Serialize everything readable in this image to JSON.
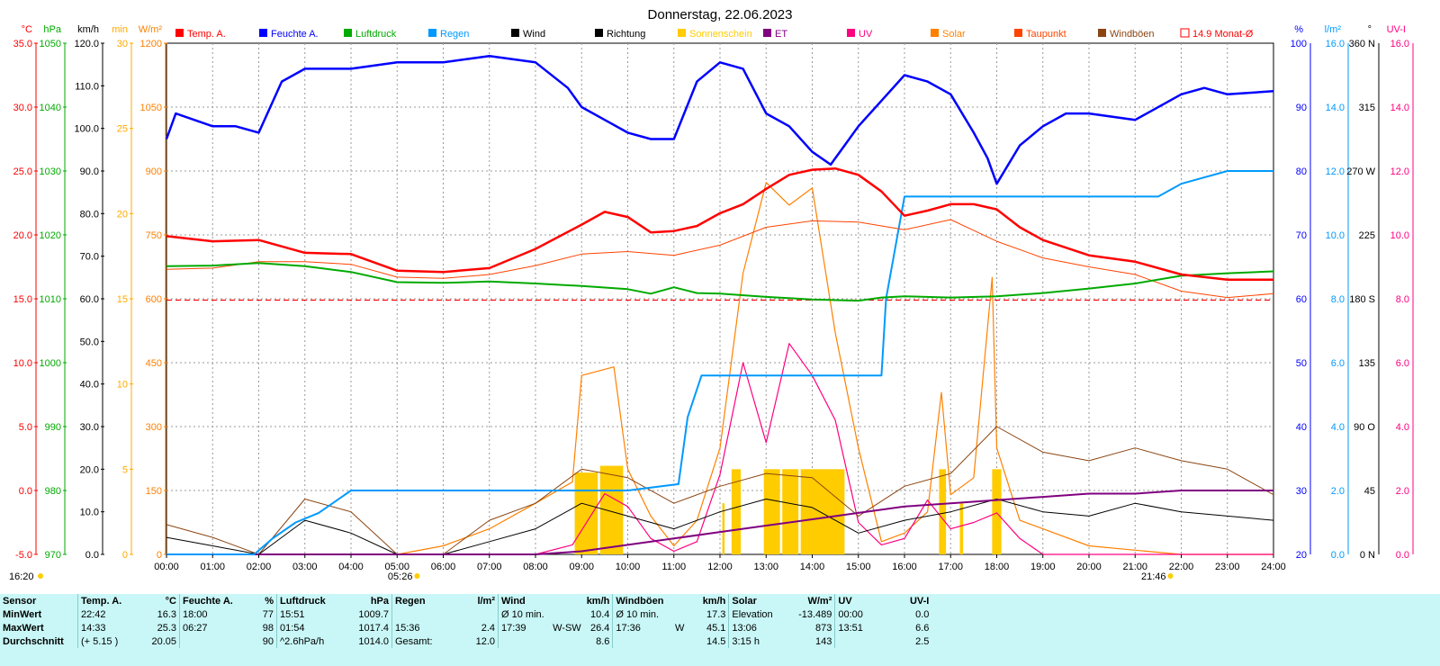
{
  "chart_data": {
    "type": "line",
    "title": "Donnerstag, 22.06.2023",
    "x_ticks": [
      "00:00",
      "01:00",
      "02:00",
      "03:00",
      "04:00",
      "05:00",
      "06:00",
      "07:00",
      "08:00",
      "09:00",
      "10:00",
      "11:00",
      "12:00",
      "13:00",
      "14:00",
      "15:00",
      "16:00",
      "17:00",
      "18:00",
      "19:00",
      "20:00",
      "21:00",
      "22:00",
      "23:00",
      "24:00"
    ],
    "grid": true,
    "legend_position": "top",
    "left_axes": [
      {
        "unit": "°C",
        "color": "#ff0000",
        "ticks": [
          "35.0",
          "30.0",
          "25.0",
          "20.0",
          "15.0",
          "10.0",
          "5.0",
          "0.0",
          "-5.0"
        ]
      },
      {
        "unit": "hPa",
        "color": "#00aa00",
        "ticks": [
          "1050",
          "1040",
          "1030",
          "1020",
          "1010",
          "1000",
          "990",
          "980",
          "970"
        ]
      },
      {
        "unit": "km/h",
        "color": "#000000",
        "ticks": [
          "120.0",
          "110.0",
          "100.0",
          "90.0",
          "80.0",
          "70.0",
          "60.0",
          "50.0",
          "40.0",
          "30.0",
          "20.0",
          "10.0",
          "0.0"
        ]
      },
      {
        "unit": "min",
        "color": "#ffaa00",
        "ticks": [
          "30",
          "25",
          "20",
          "15",
          "10",
          "5",
          "0"
        ]
      },
      {
        "unit": "W/m²",
        "color": "#ff8000",
        "ticks": [
          "1200",
          "1050",
          "900",
          "750",
          "600",
          "450",
          "300",
          "150",
          "0"
        ]
      }
    ],
    "right_axes": [
      {
        "unit": "%",
        "color": "#0000ff",
        "ticks": [
          "100",
          "90",
          "80",
          "70",
          "60",
          "50",
          "40",
          "30",
          "20"
        ]
      },
      {
        "unit": "l/m²",
        "color": "#0099ff",
        "ticks": [
          "16.0",
          "14.0",
          "12.0",
          "10.0",
          "8.0",
          "6.0",
          "4.0",
          "2.0",
          "0.0"
        ]
      },
      {
        "unit": "°",
        "color": "#000000",
        "ticks": [
          "360 N",
          "315",
          "270 W",
          "225",
          "180 S",
          "135",
          "90 O",
          "45",
          "0 N"
        ]
      },
      {
        "unit": "UV-I",
        "color": "#ff0080",
        "ticks": [
          "16.0",
          "14.0",
          "12.0",
          "10.0",
          "8.0",
          "6.0",
          "4.0",
          "2.0",
          "0.0"
        ]
      }
    ],
    "legend": [
      {
        "name": "Temp. A.",
        "color": "#ff0000"
      },
      {
        "name": "Feuchte A.",
        "color": "#0000ff"
      },
      {
        "name": "Luftdruck",
        "color": "#00aa00"
      },
      {
        "name": "Regen",
        "color": "#0099ff"
      },
      {
        "name": "Wind",
        "color": "#000000"
      },
      {
        "name": "Richtung",
        "color": "#000000"
      },
      {
        "name": "Sonnenschein",
        "color": "#ffcc00"
      },
      {
        "name": "ET",
        "color": "#800080"
      },
      {
        "name": "UV",
        "color": "#ff0080"
      },
      {
        "name": "Solar",
        "color": "#ff8000"
      },
      {
        "name": "Taupunkt",
        "color": "#ff4400"
      },
      {
        "name": "Windböen",
        "color": "#8b4513"
      },
      {
        "name": "14.9 Monat-Ø",
        "color": "#ff0000",
        "value": 14.9
      }
    ],
    "sunrise": "05:26",
    "sunset": "21:46",
    "bottom_left_label": "16:20",
    "series": [
      {
        "name": "Temp. A.",
        "axis": "°C",
        "x": [
          0,
          1,
          2,
          3,
          4,
          5,
          6,
          7,
          8,
          9,
          9.5,
          10,
          10.5,
          11,
          11.5,
          12,
          12.5,
          13,
          13.5,
          14,
          14.5,
          15,
          15.5,
          16,
          16.5,
          17,
          17.5,
          18,
          18.5,
          19,
          20,
          21,
          22,
          23,
          24
        ],
        "y": [
          19.9,
          19.5,
          19.6,
          18.6,
          18.5,
          17.2,
          17.1,
          17.4,
          18.9,
          20.8,
          21.8,
          21.4,
          20.2,
          20.3,
          20.7,
          21.7,
          22.4,
          23.6,
          24.7,
          25.1,
          25.2,
          24.7,
          23.4,
          21.5,
          21.9,
          22.4,
          22.4,
          22.0,
          20.6,
          19.6,
          18.4,
          17.9,
          16.9,
          16.5,
          16.5
        ]
      },
      {
        "name": "Feuchte A.",
        "axis": "%",
        "x": [
          0,
          0.2,
          1,
          1.5,
          2,
          2.5,
          3,
          4,
          5,
          6,
          7,
          8,
          8.7,
          9,
          9.5,
          10,
          10.5,
          11,
          11.5,
          12,
          12.5,
          13,
          13.5,
          14,
          14.4,
          14.7,
          15,
          15.5,
          16,
          16.5,
          17,
          17.5,
          17.8,
          18,
          18.5,
          19,
          19.5,
          20,
          21,
          22,
          22.5,
          23,
          24
        ],
        "y": [
          85,
          89,
          87,
          87,
          86,
          94,
          96,
          96,
          97,
          97,
          98,
          97,
          93,
          90,
          88,
          86,
          85,
          85,
          94,
          97,
          96,
          89,
          87,
          83,
          81,
          84,
          87,
          91,
          95,
          94,
          92,
          86,
          82,
          78,
          84,
          87,
          89,
          89,
          88,
          92,
          93,
          92,
          92.5
        ]
      },
      {
        "name": "Luftdruck",
        "axis": "hPa",
        "x": [
          0,
          1,
          2,
          3,
          4,
          5,
          6,
          7,
          8,
          9,
          10,
          10.5,
          11,
          11.5,
          12,
          13,
          14,
          15,
          15.5,
          16,
          17,
          18,
          19,
          20,
          21,
          22,
          23,
          24
        ],
        "y": [
          1015.1,
          1015.2,
          1015.6,
          1015.1,
          1014.2,
          1012.6,
          1012.5,
          1012.7,
          1012.4,
          1012.0,
          1011.5,
          1010.8,
          1011.8,
          1010.9,
          1010.8,
          1010.3,
          1009.9,
          1009.7,
          1010.2,
          1010.4,
          1010.2,
          1010.4,
          1010.9,
          1011.6,
          1012.4,
          1013.6,
          1014.0,
          1014.3
        ]
      },
      {
        "name": "Regen",
        "axis": "l/m²",
        "x": [
          0,
          1.9,
          2.3,
          2.8,
          3.3,
          4,
          10,
          11.1,
          11.3,
          11.6,
          12,
          13,
          15,
          15.5,
          15.6,
          16,
          21,
          21.5,
          22,
          23,
          24
        ],
        "y": [
          0,
          0,
          0.5,
          1.0,
          1.3,
          2.0,
          2.0,
          2.2,
          4.3,
          5.6,
          5.6,
          5.6,
          5.6,
          5.6,
          8.0,
          11.2,
          11.2,
          11.2,
          11.6,
          12.0,
          12.0
        ]
      },
      {
        "name": "Solar",
        "axis": "W/m²",
        "x": [
          0,
          4,
          5,
          6,
          7,
          8,
          8.8,
          9,
          9.7,
          10,
          10.5,
          11,
          11.5,
          12,
          12.5,
          13,
          13.5,
          14,
          14.5,
          15,
          15.5,
          16,
          16.5,
          16.8,
          17,
          17.5,
          17.9,
          18,
          18.5,
          19,
          20,
          21,
          22,
          24
        ],
        "y": [
          0,
          0,
          0,
          20,
          60,
          120,
          170,
          420,
          440,
          200,
          90,
          20,
          80,
          250,
          660,
          873,
          820,
          860,
          520,
          250,
          30,
          50,
          100,
          380,
          140,
          180,
          650,
          250,
          80,
          60,
          20,
          10,
          0,
          0
        ]
      },
      {
        "name": "UV",
        "axis": "UV-I",
        "x": [
          0,
          8,
          8.8,
          9.5,
          10,
          10.5,
          11,
          11.5,
          12,
          12.5,
          13,
          13.5,
          14,
          14.5,
          15,
          15.5,
          16,
          16.5,
          17,
          17.5,
          18,
          18.5,
          19,
          20,
          24
        ],
        "y": [
          0,
          0,
          0.3,
          1.9,
          1.5,
          0.5,
          0.1,
          0.4,
          2.5,
          6.0,
          3.5,
          6.6,
          5.6,
          4.2,
          1.0,
          0.3,
          0.5,
          1.7,
          0.8,
          1.0,
          1.3,
          0.5,
          0,
          0,
          0
        ]
      },
      {
        "name": "Wind",
        "axis": "km/h",
        "x": [
          0,
          1,
          2,
          3,
          4,
          5,
          6,
          7,
          8,
          9,
          10,
          11,
          12,
          13,
          14,
          15,
          16,
          17,
          18,
          19,
          20,
          21,
          22,
          23,
          24
        ],
        "y": [
          4,
          2,
          0,
          8,
          5,
          0,
          0,
          3,
          6,
          12,
          9,
          6,
          10,
          13,
          11,
          5,
          8,
          10,
          13,
          10,
          9,
          12,
          10,
          9,
          8
        ]
      },
      {
        "name": "Windböen",
        "axis": "km/h",
        "x": [
          0,
          1,
          2,
          3,
          4,
          5,
          6,
          7,
          8,
          9,
          10,
          11,
          12,
          13,
          14,
          15,
          16,
          17,
          18,
          19,
          20,
          21,
          22,
          23,
          24
        ],
        "y": [
          7,
          4,
          0,
          13,
          10,
          0,
          0,
          8,
          12,
          20,
          18,
          12,
          16,
          19,
          18,
          9,
          16,
          19,
          30,
          24,
          22,
          25,
          22,
          20,
          14
        ]
      },
      {
        "name": "ET",
        "axis": "l/m²",
        "x": [
          0,
          8,
          9,
          10,
          11,
          12,
          13,
          14,
          15,
          16,
          17,
          18,
          19,
          20,
          21,
          22,
          23,
          24
        ],
        "y": [
          0,
          0,
          0.1,
          0.3,
          0.5,
          0.7,
          0.9,
          1.1,
          1.3,
          1.5,
          1.6,
          1.7,
          1.8,
          1.9,
          1.9,
          2.0,
          2.0,
          2.0
        ]
      },
      {
        "name": "Taupunkt",
        "axis": "°C",
        "x": [
          0,
          1,
          2,
          3,
          4,
          5,
          6,
          7,
          8,
          9,
          10,
          11,
          12,
          13,
          14,
          15,
          16,
          17,
          18,
          19,
          20,
          21,
          22,
          23,
          24
        ],
        "y": [
          17.3,
          17.4,
          17.9,
          17.9,
          17.7,
          16.7,
          16.6,
          16.9,
          17.6,
          18.5,
          18.7,
          18.4,
          19.2,
          20.6,
          21.1,
          21.0,
          20.4,
          21.2,
          19.5,
          18.2,
          17.5,
          16.9,
          15.6,
          15.1,
          15.4
        ]
      }
    ],
    "sunshine_blocks": [
      {
        "from": 8.85,
        "to": 9.35,
        "minutes": 4.8
      },
      {
        "from": 9.4,
        "to": 9.9,
        "minutes": 5.2
      },
      {
        "from": 12.05,
        "to": 12.1,
        "minutes": 3.0
      },
      {
        "from": 12.25,
        "to": 12.45,
        "minutes": 5.0
      },
      {
        "from": 12.95,
        "to": 13.3,
        "minutes": 5.0
      },
      {
        "from": 13.35,
        "to": 13.7,
        "minutes": 5.0
      },
      {
        "from": 13.75,
        "to": 14.7,
        "minutes": 5.0
      },
      {
        "from": 16.75,
        "to": 16.9,
        "minutes": 5.0
      },
      {
        "from": 17.2,
        "to": 17.27,
        "minutes": 3.0
      },
      {
        "from": 17.9,
        "to": 18.1,
        "minutes": 5.0
      }
    ]
  },
  "table": {
    "headers": {
      "sensor": "Sensor",
      "temp": "Temp. A.",
      "temp_unit": "°C",
      "hum": "Feuchte A.",
      "hum_unit": "%",
      "press": "Luftdruck",
      "press_unit": "hPa",
      "rain": "Regen",
      "rain_unit": "l/m²",
      "wind": "Wind",
      "wind_unit": "km/h",
      "gust": "Windböen",
      "gust_unit": "km/h",
      "solar": "Solar",
      "solar_unit": "W/m²",
      "uv": "UV",
      "uv_unit": "UV-I"
    },
    "rows": [
      {
        "label": "MinWert",
        "temp_t": "22:42",
        "temp_v": "16.3",
        "hum_t": "18:00",
        "hum_v": "77",
        "press_t": "15:51",
        "press_v": "1009.7",
        "rain_t": "",
        "rain_v": "",
        "wind_t": "Ø 10 min.",
        "wind_d": "",
        "wind_v": "10.4",
        "gust_t": "Ø 10 min.",
        "gust_d": "",
        "gust_v": "17.3",
        "solar_t": "Elevation",
        "solar_v": "-13.489",
        "uv_t": "00:00",
        "uv_v": "0.0"
      },
      {
        "label": "MaxWert",
        "temp_t": "14:33",
        "temp_v": "25.3",
        "hum_t": "06:27",
        "hum_v": "98",
        "press_t": "01:54",
        "press_v": "1017.4",
        "rain_t": "15:36",
        "rain_v": "2.4",
        "wind_t": "17:39",
        "wind_d": "W-SW",
        "wind_v": "26.4",
        "gust_t": "17:36",
        "gust_d": "W",
        "gust_v": "45.1",
        "solar_t": "13:06",
        "solar_v": "873",
        "uv_t": "13:51",
        "uv_v": "6.6"
      },
      {
        "label": "Durchschnitt",
        "temp_t": "(+ 5.15 )",
        "temp_v": "20.05",
        "hum_t": "",
        "hum_v": "90",
        "press_t": "^2.6hPa/h",
        "press_v": "1014.0",
        "rain_t": "Gesamt:",
        "rain_v": "12.0",
        "wind_t": "",
        "wind_d": "",
        "wind_v": "8.6",
        "gust_t": "",
        "gust_d": "",
        "gust_v": "14.5",
        "solar_t": "3:15 h",
        "solar_v": "143",
        "uv_t": "",
        "uv_v": "2.5"
      }
    ]
  }
}
